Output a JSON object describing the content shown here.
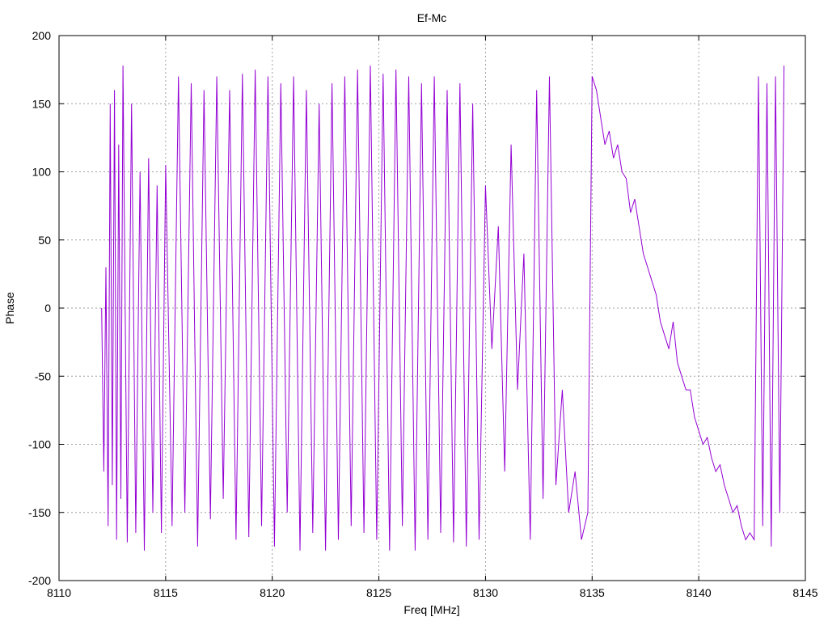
{
  "chart_data": {
    "type": "line",
    "title": "Ef-Mc",
    "xlabel": "Freq [MHz]",
    "ylabel": "Phase",
    "xlim": [
      8110,
      8145
    ],
    "ylim": [
      -200,
      200
    ],
    "xticks": [
      8110,
      8115,
      8120,
      8125,
      8130,
      8135,
      8140,
      8145
    ],
    "yticks": [
      -200,
      -150,
      -100,
      -50,
      0,
      50,
      100,
      150,
      200
    ],
    "grid": true,
    "legend": "none",
    "series_color": "#9400d3",
    "series": [
      {
        "x": [
          8112.0,
          8112.1,
          8112.2,
          8112.3,
          8112.4,
          8112.5,
          8112.6,
          8112.7,
          8112.8,
          8112.9,
          8113.0,
          8113.2,
          8113.4,
          8113.6,
          8113.8,
          8114.0,
          8114.2,
          8114.4,
          8114.6,
          8114.8,
          8115.0,
          8115.3,
          8115.6,
          8115.9,
          8116.2,
          8116.5,
          8116.8,
          8117.1,
          8117.4,
          8117.7,
          8118.0,
          8118.3,
          8118.6,
          8118.9,
          8119.2,
          8119.5,
          8119.8,
          8120.1,
          8120.4,
          8120.7,
          8121.0,
          8121.3,
          8121.6,
          8121.9,
          8122.2,
          8122.5,
          8122.8,
          8123.1,
          8123.4,
          8123.7,
          8124.0,
          8124.3,
          8124.6,
          8124.9,
          8125.2,
          8125.5,
          8125.8,
          8126.1,
          8126.4,
          8126.7,
          8127.0,
          8127.3,
          8127.6,
          8127.9,
          8128.2,
          8128.5,
          8128.8,
          8129.1,
          8129.4,
          8129.7,
          8130.0,
          8130.3,
          8130.6,
          8130.9,
          8131.2,
          8131.5,
          8131.8,
          8132.1,
          8132.4,
          8132.7,
          8133.0,
          8133.3,
          8133.6,
          8133.9,
          8134.2,
          8134.5,
          8134.8,
          8135.0,
          8135.2,
          8135.4,
          8135.6,
          8135.8,
          8136.0,
          8136.2,
          8136.4,
          8136.6,
          8136.8,
          8137.0,
          8137.2,
          8137.4,
          8137.6,
          8137.8,
          8138.0,
          8138.2,
          8138.4,
          8138.6,
          8138.8,
          8139.0,
          8139.2,
          8139.4,
          8139.6,
          8139.8,
          8140.0,
          8140.2,
          8140.4,
          8140.6,
          8140.8,
          8141.0,
          8141.2,
          8141.4,
          8141.6,
          8141.8,
          8142.0,
          8142.2,
          8142.4,
          8142.6,
          8142.8,
          8143.0,
          8143.2,
          8143.4,
          8143.6,
          8143.8,
          8144.0
        ],
        "y": [
          0,
          -120,
          30,
          -160,
          150,
          -130,
          160,
          -170,
          120,
          -140,
          178,
          -172,
          150,
          -165,
          100,
          -178,
          110,
          -150,
          90,
          -165,
          105,
          -160,
          170,
          -150,
          165,
          -175,
          160,
          -155,
          170,
          -140,
          160,
          -170,
          172,
          -168,
          175,
          -160,
          170,
          -175,
          165,
          -150,
          170,
          -178,
          160,
          -165,
          150,
          -178,
          165,
          -170,
          170,
          -160,
          175,
          -165,
          178,
          -170,
          172,
          -178,
          175,
          -160,
          170,
          -178,
          165,
          -170,
          170,
          -165,
          160,
          -172,
          165,
          -175,
          150,
          -170,
          90,
          -30,
          60,
          -120,
          120,
          -60,
          40,
          -170,
          160,
          -140,
          170,
          -130,
          -60,
          -150,
          -120,
          -170,
          -150,
          170,
          160,
          140,
          120,
          130,
          110,
          120,
          100,
          95,
          70,
          80,
          60,
          40,
          30,
          20,
          10,
          -10,
          -20,
          -30,
          -10,
          -40,
          -50,
          -60,
          -60,
          -80,
          -90,
          -100,
          -95,
          -110,
          -120,
          -115,
          -130,
          -140,
          -150,
          -145,
          -160,
          -170,
          -165,
          -170,
          170,
          -160,
          165,
          -175,
          170,
          -150,
          178
        ]
      }
    ]
  }
}
